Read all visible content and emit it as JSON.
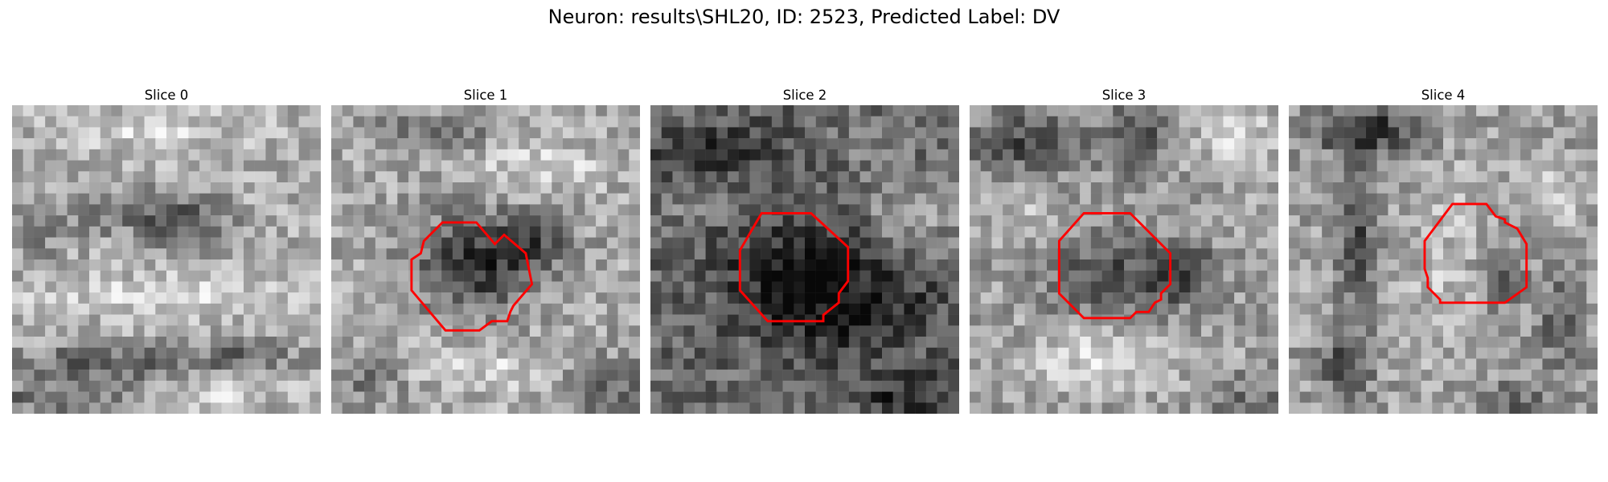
{
  "figure": {
    "title": "Neuron: results\\SHL20, ID: 2523, Predicted Label: DV"
  },
  "colors": {
    "contour": "#ff0000",
    "background": "#ffffff"
  },
  "grid_size": 28,
  "slices": [
    {
      "title": "Slice 0",
      "mean_tone": 172,
      "dark_blobs": [
        [
          0.58,
          0.38,
          0.12,
          0.08,
          95
        ],
        [
          0.35,
          0.35,
          0.18,
          0.07,
          60
        ],
        [
          0.3,
          0.84,
          0.28,
          0.06,
          85
        ],
        [
          0.75,
          0.82,
          0.16,
          0.06,
          60
        ],
        [
          0.15,
          0.95,
          0.25,
          0.05,
          70
        ],
        [
          0.08,
          0.4,
          0.08,
          0.1,
          45
        ]
      ],
      "bright_blobs": [
        [
          0.45,
          0.08,
          0.3,
          0.07,
          40
        ],
        [
          0.5,
          0.62,
          0.45,
          0.07,
          40
        ],
        [
          0.65,
          0.93,
          0.25,
          0.05,
          40
        ]
      ],
      "contour": []
    },
    {
      "title": "Slice 1",
      "mean_tone": 168,
      "dark_blobs": [
        [
          0.45,
          0.52,
          0.18,
          0.16,
          110
        ],
        [
          0.65,
          0.45,
          0.14,
          0.1,
          80
        ],
        [
          0.3,
          0.08,
          0.22,
          0.06,
          55
        ],
        [
          0.9,
          0.92,
          0.14,
          0.1,
          70
        ],
        [
          0.12,
          0.9,
          0.12,
          0.1,
          45
        ]
      ],
      "bright_blobs": [
        [
          0.7,
          0.2,
          0.22,
          0.08,
          45
        ],
        [
          0.5,
          0.85,
          0.25,
          0.08,
          40
        ]
      ],
      "contour": [
        [
          0.36,
          0.38
        ],
        [
          0.47,
          0.38
        ],
        [
          0.53,
          0.45
        ],
        [
          0.56,
          0.42
        ],
        [
          0.63,
          0.48
        ],
        [
          0.65,
          0.58
        ],
        [
          0.59,
          0.65
        ],
        [
          0.58,
          0.67
        ],
        [
          0.57,
          0.7
        ],
        [
          0.52,
          0.7
        ],
        [
          0.48,
          0.73
        ],
        [
          0.37,
          0.73
        ],
        [
          0.26,
          0.6
        ],
        [
          0.26,
          0.5
        ],
        [
          0.29,
          0.48
        ],
        [
          0.3,
          0.44
        ]
      ]
    },
    {
      "title": "Slice 2",
      "mean_tone": 105,
      "dark_blobs": [
        [
          0.45,
          0.55,
          0.22,
          0.2,
          75
        ],
        [
          0.7,
          0.65,
          0.22,
          0.18,
          70
        ],
        [
          0.2,
          0.15,
          0.22,
          0.1,
          55
        ],
        [
          0.85,
          0.95,
          0.18,
          0.08,
          60
        ]
      ],
      "bright_blobs": [
        [
          0.85,
          0.35,
          0.15,
          0.12,
          65
        ],
        [
          0.15,
          0.3,
          0.1,
          0.08,
          40
        ],
        [
          0.7,
          0.12,
          0.1,
          0.08,
          35
        ]
      ],
      "contour": [
        [
          0.36,
          0.35
        ],
        [
          0.52,
          0.35
        ],
        [
          0.64,
          0.46
        ],
        [
          0.64,
          0.57
        ],
        [
          0.61,
          0.61
        ],
        [
          0.61,
          0.64
        ],
        [
          0.56,
          0.68
        ],
        [
          0.56,
          0.7
        ],
        [
          0.38,
          0.7
        ],
        [
          0.29,
          0.6
        ],
        [
          0.29,
          0.47
        ]
      ]
    },
    {
      "title": "Slice 3",
      "mean_tone": 160,
      "dark_blobs": [
        [
          0.45,
          0.55,
          0.2,
          0.14,
          80
        ],
        [
          0.18,
          0.12,
          0.2,
          0.1,
          90
        ],
        [
          0.55,
          0.1,
          0.1,
          0.12,
          70
        ],
        [
          0.7,
          0.55,
          0.12,
          0.1,
          70
        ],
        [
          0.9,
          0.95,
          0.15,
          0.08,
          50
        ]
      ],
      "bright_blobs": [
        [
          0.45,
          0.82,
          0.25,
          0.1,
          55
        ],
        [
          0.85,
          0.1,
          0.15,
          0.1,
          50
        ],
        [
          0.15,
          0.3,
          0.12,
          0.08,
          40
        ]
      ],
      "contour": [
        [
          0.37,
          0.35
        ],
        [
          0.52,
          0.35
        ],
        [
          0.65,
          0.48
        ],
        [
          0.65,
          0.58
        ],
        [
          0.62,
          0.61
        ],
        [
          0.62,
          0.63
        ],
        [
          0.6,
          0.64
        ],
        [
          0.58,
          0.67
        ],
        [
          0.54,
          0.67
        ],
        [
          0.52,
          0.69
        ],
        [
          0.37,
          0.69
        ],
        [
          0.29,
          0.61
        ],
        [
          0.29,
          0.44
        ]
      ]
    },
    {
      "title": "Slice 4",
      "mean_tone": 160,
      "dark_blobs": [
        [
          0.25,
          0.08,
          0.18,
          0.08,
          110
        ],
        [
          0.22,
          0.45,
          0.06,
          0.25,
          85
        ],
        [
          0.18,
          0.85,
          0.08,
          0.1,
          80
        ],
        [
          0.7,
          0.55,
          0.06,
          0.1,
          70
        ],
        [
          0.88,
          0.7,
          0.06,
          0.18,
          70
        ],
        [
          0.7,
          0.96,
          0.12,
          0.05,
          70
        ]
      ],
      "bright_blobs": [
        [
          0.5,
          0.5,
          0.12,
          0.35,
          30
        ],
        [
          0.85,
          0.3,
          0.12,
          0.12,
          35
        ]
      ],
      "contour": [
        [
          0.53,
          0.32
        ],
        [
          0.64,
          0.32
        ],
        [
          0.67,
          0.36
        ],
        [
          0.7,
          0.37
        ],
        [
          0.7,
          0.38
        ],
        [
          0.74,
          0.4
        ],
        [
          0.77,
          0.45
        ],
        [
          0.77,
          0.59
        ],
        [
          0.7,
          0.64
        ],
        [
          0.49,
          0.64
        ],
        [
          0.49,
          0.63
        ],
        [
          0.47,
          0.61
        ],
        [
          0.45,
          0.59
        ],
        [
          0.45,
          0.56
        ],
        [
          0.44,
          0.53
        ],
        [
          0.44,
          0.44
        ]
      ]
    }
  ]
}
